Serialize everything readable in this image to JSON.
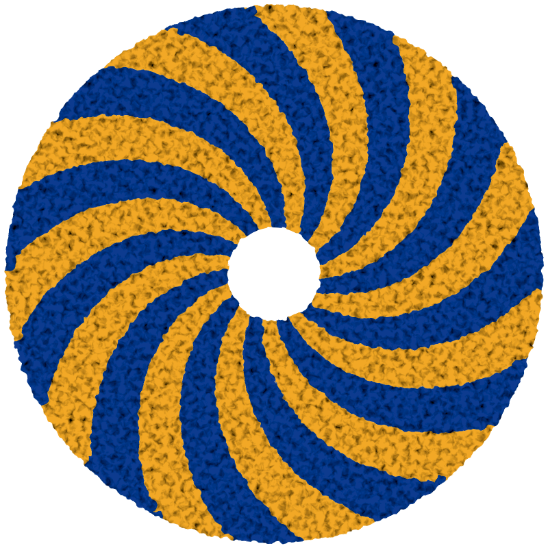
{
  "scene": {
    "subject": "protein-complex-ring",
    "symmetry_fold": 11,
    "chain_colors": [
      "#0b3a8f",
      "#f2a826"
    ],
    "background_color": "#ffffff"
  }
}
